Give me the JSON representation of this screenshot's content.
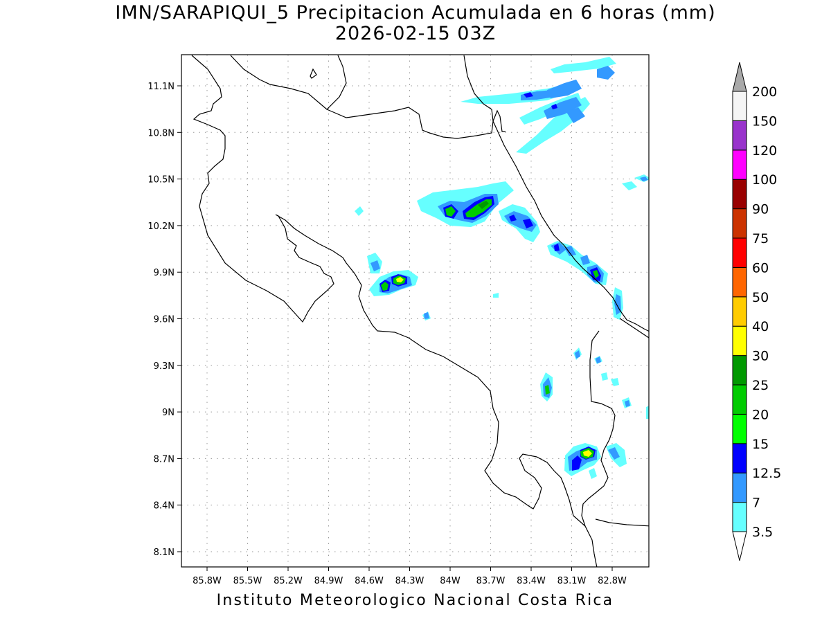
{
  "title": {
    "line1": "IMN/SARAPIQUI_5 Precipitacion Acumulada en 6 horas (mm)",
    "line2": "2026-02-15 03Z"
  },
  "credit": "Instituto Meteorologico Nacional Costa Rica",
  "axes": {
    "lon_ticks": [
      "85.8W",
      "85.5W",
      "85.2W",
      "84.9W",
      "84.6W",
      "84.3W",
      "84W",
      "83.7W",
      "83.4W",
      "83.1W",
      "82.8W"
    ],
    "lat_ticks": [
      "11.1N",
      "10.8N",
      "10.5N",
      "10.2N",
      "9.9N",
      "9.6N",
      "9.3N",
      "9N",
      "8.7N",
      "8.4N",
      "8.1N"
    ]
  },
  "colorbar": {
    "labels": [
      "3.5",
      "7",
      "12.5",
      "15",
      "20",
      "25",
      "30",
      "40",
      "50",
      "60",
      "75",
      "90",
      "100",
      "120",
      "150",
      "200"
    ],
    "colors": [
      "#66ffff",
      "#3399ff",
      "#0000ff",
      "#00ff00",
      "#00cc00",
      "#009900",
      "#ffff00",
      "#ffcc00",
      "#ff6600",
      "#ff0000",
      "#cc3300",
      "#990000",
      "#ff00ff",
      "#9933cc",
      "#f5f5f5",
      "#a9a9a9"
    ]
  },
  "precip_cells": [
    {
      "lon": -84.4,
      "lat": 9.86,
      "levels": [
        "#66ffff",
        "#3399ff",
        "#0000ff",
        "#00cc00",
        "#ffff00"
      ]
    },
    {
      "lon": -84.48,
      "lat": 9.8,
      "levels": [
        "#66ffff",
        "#3399ff",
        "#0000ff",
        "#00cc00"
      ]
    },
    {
      "lon": -84.0,
      "lat": 10.29,
      "levels": [
        "#66ffff",
        "#3399ff",
        "#0000ff",
        "#00cc00"
      ]
    },
    {
      "lon": -83.76,
      "lat": 10.31,
      "levels": [
        "#66ffff",
        "#3399ff",
        "#0000ff",
        "#00cc00"
      ]
    },
    {
      "lon": -83.36,
      "lat": 10.21,
      "levels": [
        "#66ffff",
        "#3399ff",
        "#0000ff"
      ]
    },
    {
      "lon": -82.92,
      "lat": 9.87,
      "levels": [
        "#66ffff",
        "#3399ff",
        "#0000ff",
        "#00cc00"
      ]
    },
    {
      "lon": -82.93,
      "lat": 8.74,
      "levels": [
        "#66ffff",
        "#3399ff",
        "#00cc00",
        "#ffff00"
      ]
    },
    {
      "lon": -83.22,
      "lat": 9.15,
      "levels": [
        "#66ffff",
        "#3399ff",
        "#00cc00"
      ]
    },
    {
      "lon": -83.4,
      "lat": 11.05,
      "levels": [
        "#66ffff",
        "#3399ff",
        "#0000ff"
      ]
    },
    {
      "lon": -83.12,
      "lat": 10.97,
      "levels": [
        "#66ffff",
        "#3399ff",
        "#0000ff"
      ]
    }
  ]
}
